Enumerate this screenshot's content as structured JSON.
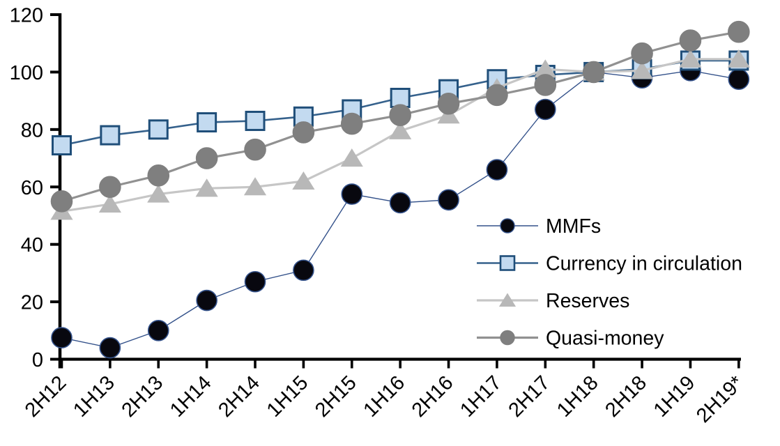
{
  "chart_data": {
    "type": "line",
    "title": "",
    "xlabel": "",
    "ylabel": "",
    "categories": [
      "2H12",
      "1H13",
      "2H13",
      "1H14",
      "2H14",
      "1H15",
      "2H15",
      "1H16",
      "2H16",
      "1H17",
      "2H17",
      "1H18",
      "2H18",
      "1H19",
      "2H19*"
    ],
    "series": [
      {
        "name": "MMFs",
        "marker": "circle",
        "marker_size": 14.5,
        "marker_fill": "#08080f",
        "marker_stroke": "#33518a",
        "line_color": "#33518a",
        "line_width": 1.4,
        "values": [
          7.5,
          4,
          10,
          20.5,
          27,
          31,
          57.5,
          54.5,
          55.5,
          66,
          87,
          100,
          98,
          100.5,
          97.5
        ]
      },
      {
        "name": "Currency in circulation",
        "marker": "square",
        "marker_size": 13,
        "marker_fill": "#c3daf0",
        "marker_stroke": "#1f4e79",
        "line_color": "#35618c",
        "line_width": 2.6,
        "values": [
          74.5,
          78,
          80,
          82.5,
          83,
          84.5,
          87,
          91,
          94,
          97.5,
          99,
          100,
          101,
          104,
          104
        ]
      },
      {
        "name": "Reserves",
        "marker": "triangle",
        "marker_size": 14,
        "marker_fill": "#b8b8b8",
        "marker_stroke": "#b8b8b8",
        "line_color": "#c6c6c6",
        "line_width": 3.2,
        "values": [
          51.5,
          54,
          57.5,
          59.5,
          60,
          62,
          70,
          79.5,
          85,
          94.5,
          101,
          100,
          100.5,
          104.5,
          104.5
        ]
      },
      {
        "name": "Quasi-money",
        "marker": "circle",
        "marker_size": 15,
        "marker_fill": "#7f7f7f",
        "marker_stroke": "#7f7f7f",
        "line_color": "#919191",
        "line_width": 3.2,
        "values": [
          55,
          60,
          64,
          70,
          73,
          79,
          82,
          85,
          89,
          92,
          95.5,
          100,
          106.5,
          111,
          114
        ]
      }
    ],
    "ylim": [
      0,
      120
    ],
    "yticks": [
      0,
      20,
      40,
      60,
      80,
      100,
      120
    ],
    "x_tick_rotation": -45,
    "grid": false,
    "legend_position": "inside-right",
    "axis_color": "#000000",
    "background": "#ffffff"
  }
}
